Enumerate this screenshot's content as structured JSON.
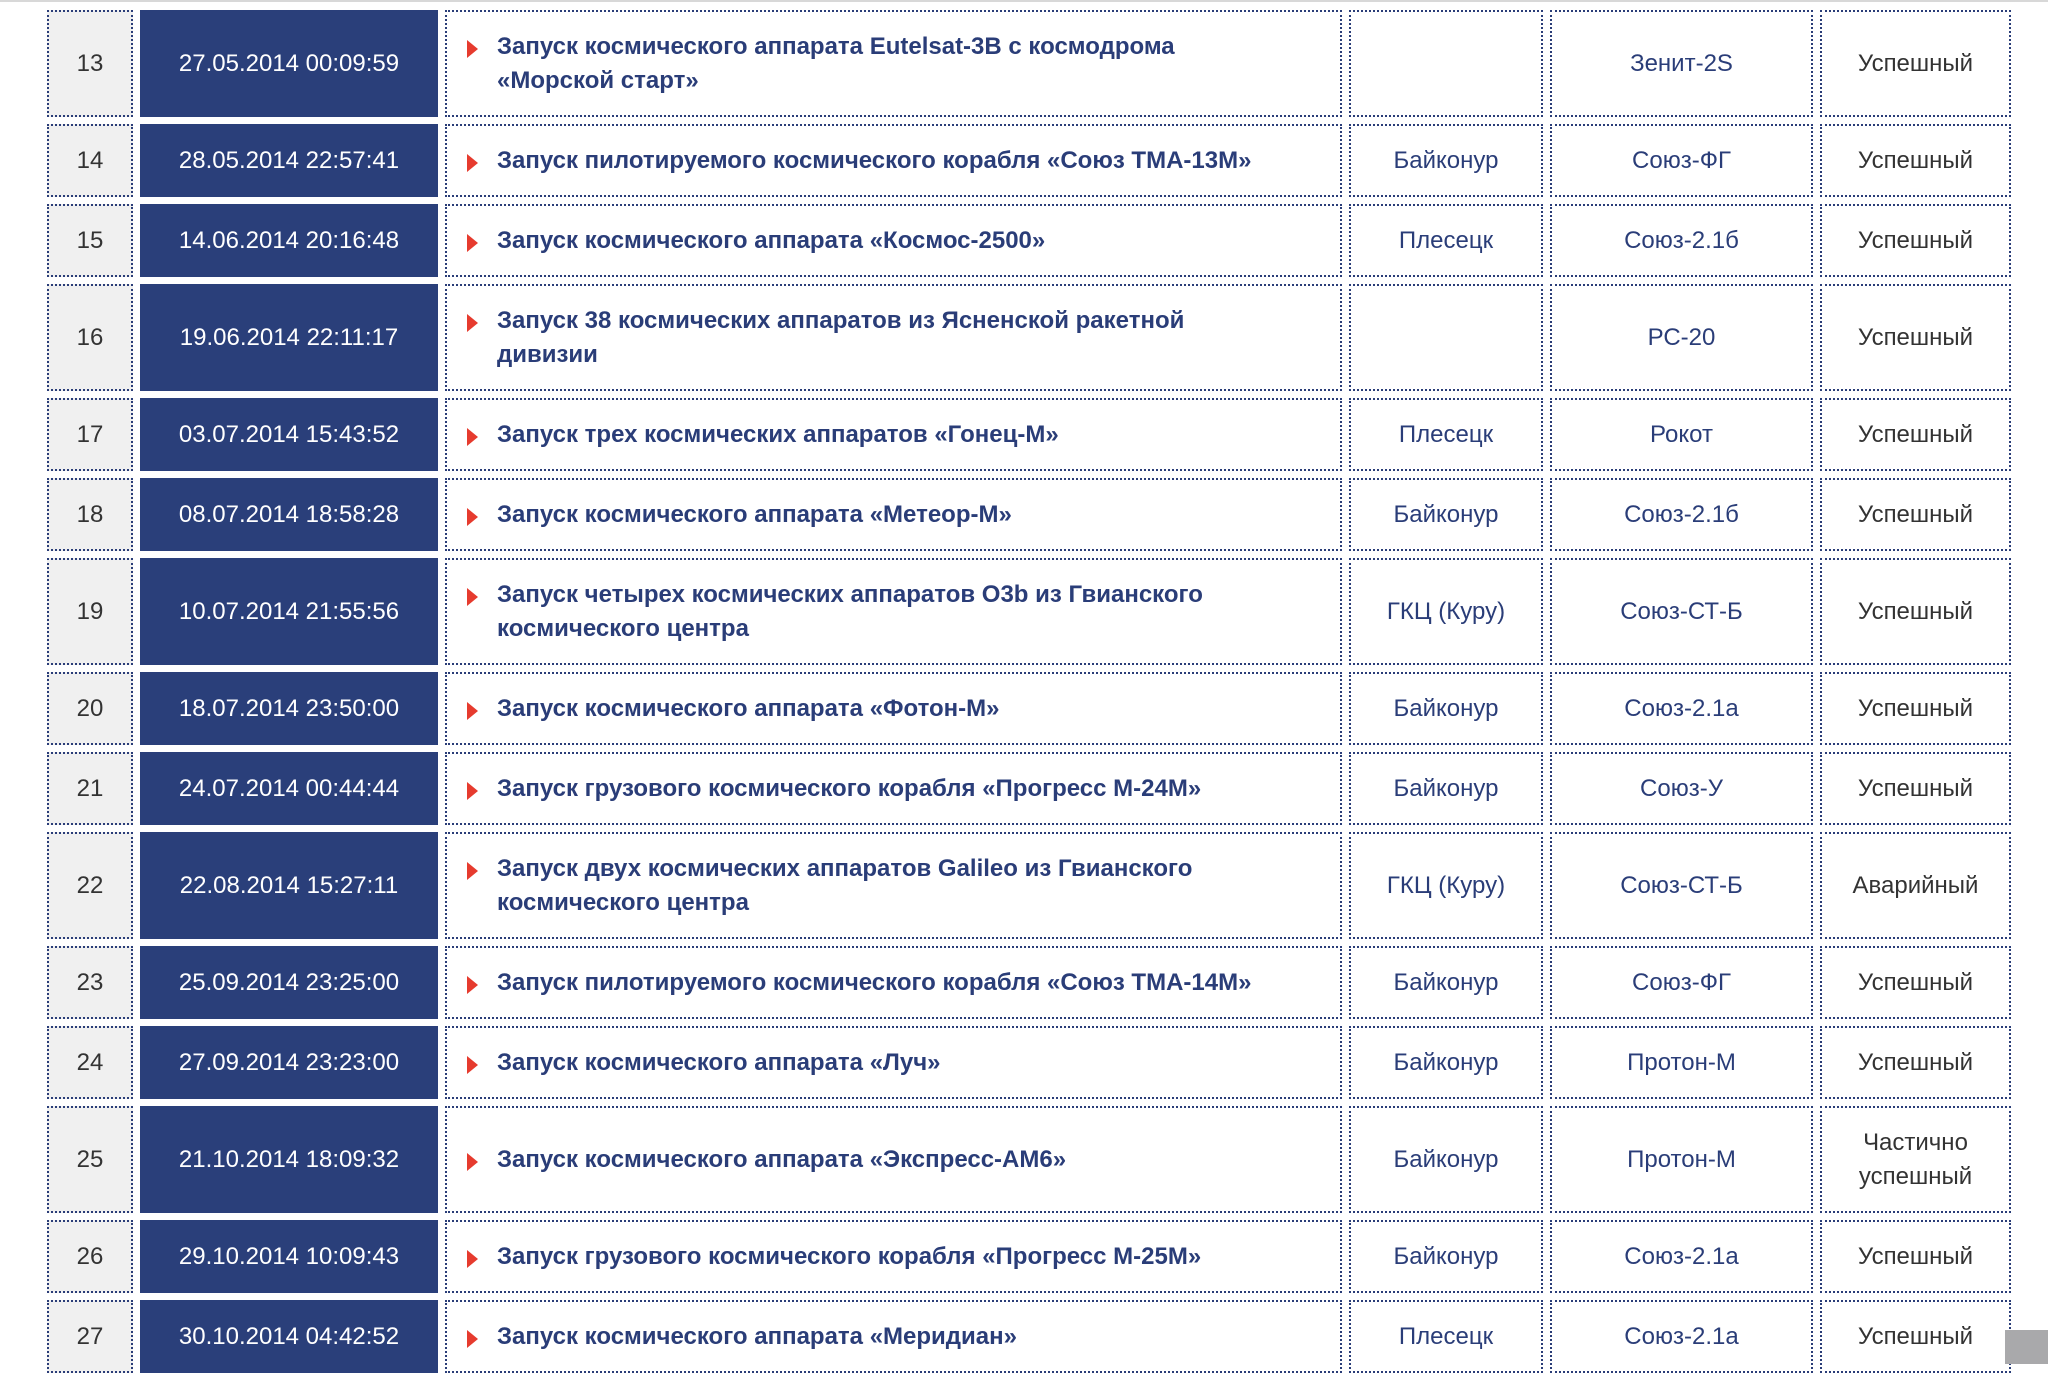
{
  "colors": {
    "accent": "#2a3f7a",
    "arrow": "#e63b2e",
    "number_bg": "#f0f0f0"
  },
  "rows": [
    {
      "num": "13",
      "date": "27.05.2014 00:09:59",
      "title": "Запуск космического аппарата Eutelsat-3B с космодрома\n«Морской старт»",
      "site": "",
      "rocket": "Зенит-2S",
      "status": "Успешный",
      "tall": true
    },
    {
      "num": "14",
      "date": "28.05.2014 22:57:41",
      "title": "Запуск пилотируемого космического корабля «Союз ТМА-13М»",
      "site": "Байконур",
      "rocket": "Союз-ФГ",
      "status": "Успешный"
    },
    {
      "num": "15",
      "date": "14.06.2014 20:16:48",
      "title": "Запуск космического аппарата «Космос-2500»",
      "site": "Плесецк",
      "rocket": "Союз-2.1б",
      "status": "Успешный"
    },
    {
      "num": "16",
      "date": "19.06.2014 22:11:17",
      "title": "Запуск 38 космических аппаратов из Ясненской ракетной\nдивизии",
      "site": "",
      "rocket": "РС-20",
      "status": "Успешный",
      "tall": true
    },
    {
      "num": "17",
      "date": "03.07.2014 15:43:52",
      "title": "Запуск трех космических аппаратов «Гонец-М»",
      "site": "Плесецк",
      "rocket": "Рокот",
      "status": "Успешный"
    },
    {
      "num": "18",
      "date": "08.07.2014 18:58:28",
      "title": "Запуск космического аппарата «Метеор-М»",
      "site": "Байконур",
      "rocket": "Союз-2.1б",
      "status": "Успешный"
    },
    {
      "num": "19",
      "date": "10.07.2014 21:55:56",
      "title": "Запуск четырех космических аппаратов O3b из Гвианского\nкосмического центра",
      "site": "ГКЦ (Куру)",
      "rocket": "Союз-СТ-Б",
      "status": "Успешный",
      "tall": true
    },
    {
      "num": "20",
      "date": "18.07.2014 23:50:00",
      "title": "Запуск космического аппарата «Фотон-М»",
      "site": "Байконур",
      "rocket": "Союз-2.1а",
      "status": "Успешный"
    },
    {
      "num": "21",
      "date": "24.07.2014 00:44:44",
      "title": "Запуск грузового космического корабля «Прогресс М-24М»",
      "site": "Байконур",
      "rocket": "Союз-У",
      "status": "Успешный"
    },
    {
      "num": "22",
      "date": "22.08.2014 15:27:11",
      "title": "Запуск двух космических аппаратов Galileo из Гвианского\nкосмического центра",
      "site": "ГКЦ (Куру)",
      "rocket": "Союз-СТ-Б",
      "status": "Аварийный",
      "tall": true
    },
    {
      "num": "23",
      "date": "25.09.2014 23:25:00",
      "title": "Запуск пилотируемого космического корабля «Союз ТМА-14М»",
      "site": "Байконур",
      "rocket": "Союз-ФГ",
      "status": "Успешный"
    },
    {
      "num": "24",
      "date": "27.09.2014 23:23:00",
      "title": "Запуск космического аппарата «Луч»",
      "site": "Байконур",
      "rocket": "Протон-М",
      "status": "Успешный"
    },
    {
      "num": "25",
      "date": "21.10.2014 18:09:32",
      "title": "Запуск космического аппарата «Экспресс-АМ6»",
      "site": "Байконур",
      "rocket": "Протон-М",
      "status": "Частично\nуспешный",
      "tall": true
    },
    {
      "num": "26",
      "date": "29.10.2014 10:09:43",
      "title": "Запуск грузового космического корабля «Прогресс М-25М»",
      "site": "Байконур",
      "rocket": "Союз-2.1а",
      "status": "Успешный"
    },
    {
      "num": "27",
      "date": "30.10.2014 04:42:52",
      "title": "Запуск космического аппарата «Меридиан»",
      "site": "Плесецк",
      "rocket": "Союз-2.1а",
      "status": "Успешный"
    }
  ]
}
